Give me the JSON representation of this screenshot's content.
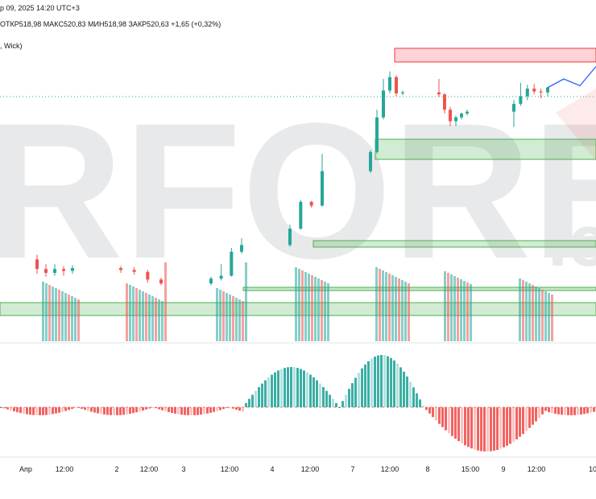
{
  "header": {
    "date_line": "р 09, 2025 14:20 UTC+3",
    "open": "ОТКР518,98",
    "high": "МАКС520,83",
    "low": "МИН518,98",
    "close": "ЗАКР520,63",
    "change": "+1,65 (+0,32%)",
    "indicator_label": ", Wick)"
  },
  "watermark": {
    "text": "RFOREX",
    "suffix": ".c"
  },
  "colors": {
    "up": "#26a69a",
    "down": "#ef5350",
    "zone_green": "#4caf50",
    "zone_red": "#f23645",
    "forecast": "#2962ff",
    "grid": "#e0e3eb"
  },
  "chart_data": {
    "type": "candlestick",
    "x_ticks": [
      "Апр",
      "12:00",
      "2",
      "12:00",
      "3",
      "12:00",
      "4",
      "12:00",
      "7",
      "12:00",
      "8",
      "15:00",
      "9",
      "12:00",
      "10"
    ],
    "price_candles": [
      [
        0,
        0,
        0,
        0,
        "up"
      ],
      [
        0,
        0,
        0,
        0,
        "up"
      ]
    ],
    "candles": [
      {
        "o": 100,
        "c": 99,
        "h": 100.5,
        "l": 98.5
      },
      {
        "o": 99,
        "c": 98.6,
        "h": 99.5,
        "l": 98.2
      },
      {
        "o": 98.6,
        "c": 99,
        "h": 99.5,
        "l": 98.3
      },
      {
        "o": 99,
        "c": 98.8,
        "h": 99.3,
        "l": 98.3
      },
      {
        "o": 98.8,
        "c": 99.1,
        "h": 99.4,
        "l": 98.5
      },
      {
        "o": 99.1,
        "c": 98.9,
        "h": 99.3,
        "l": 98.6
      },
      {
        "o": 98.9,
        "c": 98.7,
        "h": 99.2,
        "l": 98.4
      },
      {
        "o": 98.7,
        "c": 97.9,
        "h": 98.9,
        "l": 97.6
      },
      {
        "o": 97.9,
        "c": 97.5,
        "h": 98.1,
        "l": 97.3
      },
      {
        "o": 97.5,
        "c": 98.0,
        "h": 98.2,
        "l": 97.3
      },
      {
        "o": 98.0,
        "c": 98.3,
        "h": 99.5,
        "l": 97.8
      },
      {
        "o": 98.3,
        "c": 100.8,
        "h": 101.2,
        "l": 98.2
      },
      {
        "o": 100.8,
        "c": 101.5,
        "h": 102.2,
        "l": 100.6
      },
      {
        "o": 101.5,
        "c": 103.2,
        "h": 103.6,
        "l": 101.3
      },
      {
        "o": 103.2,
        "c": 106.0,
        "h": 106.2,
        "l": 103.1
      },
      {
        "o": 106.0,
        "c": 105.6,
        "h": 106.1,
        "l": 105.4
      },
      {
        "o": 105.6,
        "c": 109.2,
        "h": 111.0,
        "l": 105.5
      },
      {
        "o": 109.2,
        "c": 111.2,
        "h": 111.4,
        "l": 109.0
      },
      {
        "o": 111.2,
        "c": 114.8,
        "h": 115.6,
        "l": 111.0
      },
      {
        "o": 114.8,
        "c": 117.6,
        "h": 118.8,
        "l": 114.6
      },
      {
        "o": 117.6,
        "c": 119.0,
        "h": 119.6,
        "l": 117.3
      },
      {
        "o": 119.0,
        "c": 117.3,
        "h": 119.2,
        "l": 117.0
      },
      {
        "o": 117.3,
        "c": 117.4,
        "h": 117.6,
        "l": 117.1
      },
      {
        "o": 117.4,
        "c": 117.2,
        "h": 118.8,
        "l": 116.9
      },
      {
        "o": 117.2,
        "c": 115.6,
        "h": 117.3,
        "l": 115.2
      },
      {
        "o": 115.6,
        "c": 114.4,
        "h": 115.9,
        "l": 113.9
      },
      {
        "o": 114.4,
        "c": 114.8,
        "h": 115.0,
        "l": 113.9
      },
      {
        "o": 114.8,
        "c": 115.2,
        "h": 115.3,
        "l": 114.6
      },
      {
        "o": 115.2,
        "c": 115.4,
        "h": 115.6,
        "l": 115.0
      },
      {
        "o": 115.4,
        "c": 116.2,
        "h": 116.6,
        "l": 113.8
      },
      {
        "o": 116.2,
        "c": 117.0,
        "h": 118.4,
        "l": 116.0
      },
      {
        "o": 117.0,
        "c": 117.8,
        "h": 118.2,
        "l": 116.6
      },
      {
        "o": 117.8,
        "c": 117.5,
        "h": 118.3,
        "l": 117.2
      },
      {
        "o": 117.5,
        "c": 117.4,
        "h": 117.8,
        "l": 116.8
      },
      {
        "o": 117.4,
        "c": 117.9,
        "h": 118.0,
        "l": 117.0
      }
    ],
    "forecast": [
      117.9,
      118.8,
      118.1,
      120.1
    ],
    "volume": [
      2,
      3,
      2,
      3,
      2,
      2,
      2,
      3,
      2,
      2,
      2,
      3,
      3,
      3,
      3,
      2,
      3,
      3,
      3,
      3,
      3,
      2,
      2,
      2,
      3,
      3,
      2,
      2,
      2,
      2,
      3,
      3,
      3,
      3,
      2
    ],
    "histogram_note": "oscillator pane"
  }
}
